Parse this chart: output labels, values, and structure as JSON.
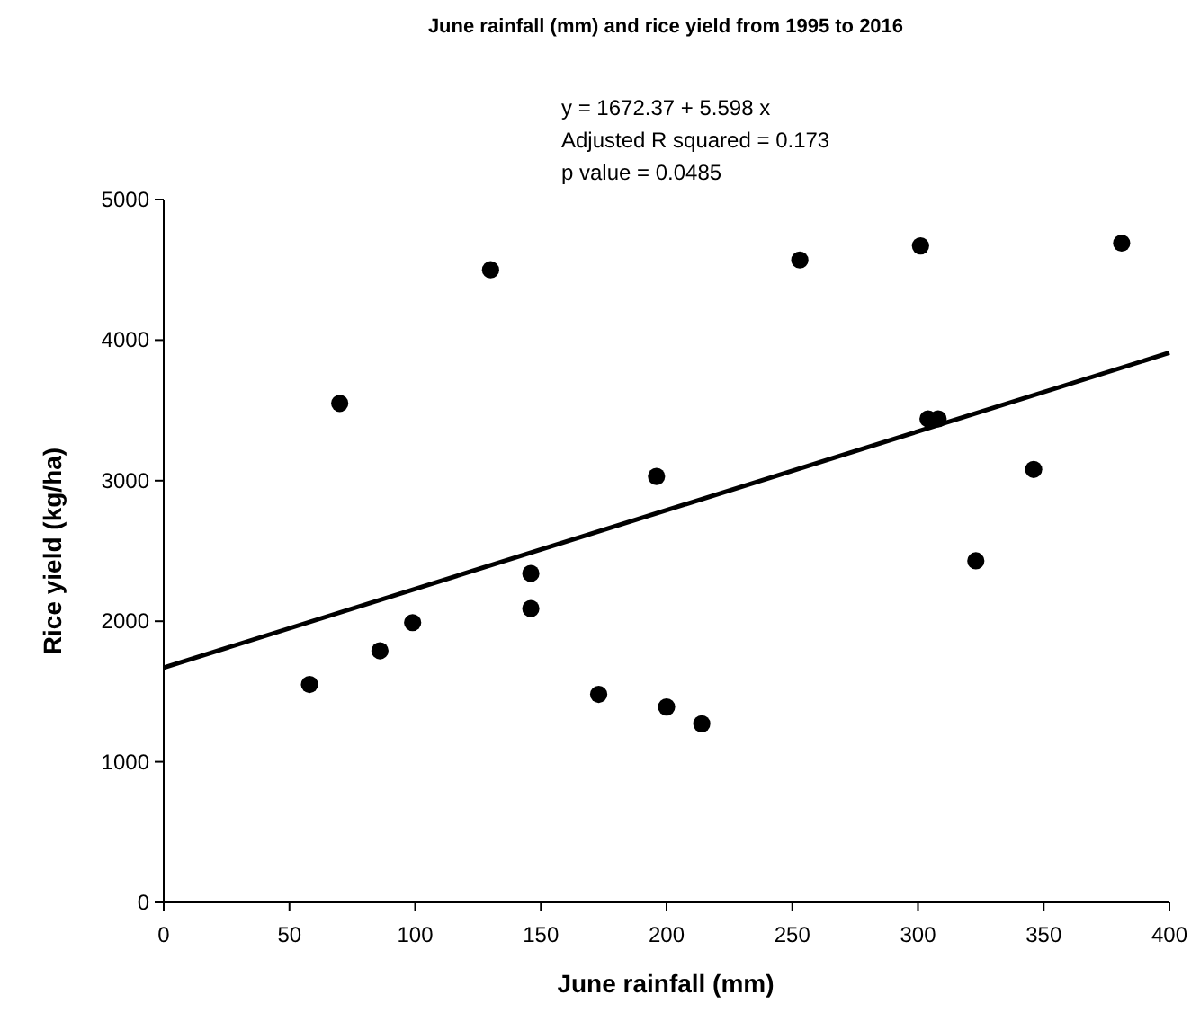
{
  "chart_data": {
    "type": "scatter",
    "title": "June rainfall (mm) and rice yield from 1995 to 2016",
    "xlabel": "June rainfall (mm)",
    "ylabel": "Rice yield (kg/ha)",
    "annotations": [
      "y = 1672.37 + 5.598 x",
      "Adjusted R squared = 0.173",
      "p value = 0.0485"
    ],
    "xlim": [
      0,
      400
    ],
    "xticks": [
      0,
      50,
      100,
      150,
      200,
      250,
      300,
      350,
      400
    ],
    "ylim": [
      0,
      5000
    ],
    "yticks": [
      0,
      1000,
      2000,
      3000,
      4000,
      5000
    ],
    "grid": false,
    "marker": "circle",
    "series": [
      {
        "color": "#000000",
        "x": [
          58,
          70,
          130,
          86,
          99,
          146,
          146,
          173,
          196,
          200,
          214,
          253,
          301,
          381,
          304,
          308,
          346,
          323
        ],
        "values": [
          1550,
          3550,
          4500,
          1790,
          1990,
          2340,
          2090,
          1480,
          3030,
          1390,
          1270,
          4570,
          4670,
          4690,
          3440,
          3440,
          3080,
          2430
        ]
      },
      {
        "type": "line",
        "color": "#000000",
        "line_style": "solid",
        "marker": "none",
        "x": [
          0,
          400
        ],
        "values": [
          1670,
          3910
        ]
      }
    ]
  }
}
